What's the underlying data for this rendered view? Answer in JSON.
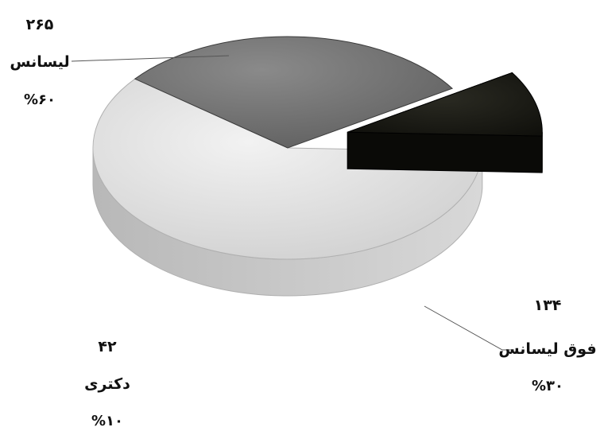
{
  "chart_data": {
    "type": "pie",
    "style": "3d-exploded",
    "legend": "none",
    "slices": [
      {
        "label": "لیسانس",
        "value": 265,
        "percent_label": "%۶۰",
        "value_label": "۲۶۵",
        "color": "#dcdcdc"
      },
      {
        "label": "فوق لیسانس",
        "value": 134,
        "percent_label": "%۳۰",
        "value_label": "۱۳۴",
        "color": "#6e6e6e"
      },
      {
        "label": "دکتری",
        "value": 42,
        "percent_label": "%۱۰",
        "value_label": "۴۲",
        "color": "#141410"
      }
    ]
  }
}
